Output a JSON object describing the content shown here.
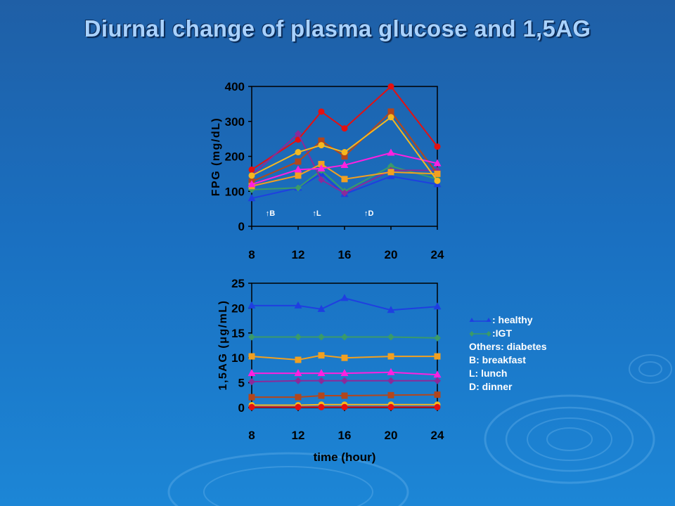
{
  "page": {
    "title": "Diurnal change of plasma glucose and 1,5AG"
  },
  "chart_data": [
    {
      "type": "line",
      "ylabel": "FPG (mg/dL)",
      "xlabel": "",
      "x": [
        8,
        12,
        14,
        16,
        20,
        24
      ],
      "xticks": [
        "8",
        "12",
        "16",
        "20",
        "24"
      ],
      "yticks": [
        "0",
        "100",
        "200",
        "300",
        "400"
      ],
      "xlim": [
        8,
        24
      ],
      "ylim": [
        0,
        400
      ],
      "annotations": [
        {
          "text": "↑B",
          "x": 9
        },
        {
          "text": "↑L",
          "x": 13
        },
        {
          "text": "↑D",
          "x": 17.5
        }
      ],
      "series": [
        {
          "color": "#1f3fe0",
          "marker": "triangle",
          "values": [
            80,
            110,
            150,
            92,
            143,
            120
          ]
        },
        {
          "color": "#3a9a6a",
          "marker": "diamond",
          "values": [
            105,
            110,
            160,
            100,
            172,
            135
          ]
        },
        {
          "color": "#e51010",
          "marker": "circle",
          "values": [
            162,
            248,
            328,
            280,
            400,
            228
          ]
        },
        {
          "color": "#8b2a9a",
          "marker": "diamond",
          "values": [
            145,
            265,
            133,
            95,
            160,
            160
          ]
        },
        {
          "color": "#b3461c",
          "marker": "square",
          "values": [
            128,
            185,
            245,
            200,
            328,
            150
          ]
        },
        {
          "color": "#f2a020",
          "marker": "square",
          "values": [
            115,
            145,
            178,
            135,
            155,
            150
          ]
        },
        {
          "color": "#ff20e0",
          "marker": "triangle",
          "values": [
            120,
            162,
            165,
            175,
            210,
            180
          ]
        },
        {
          "color": "#f5b820",
          "marker": "circle",
          "values": [
            145,
            212,
            232,
            212,
            312,
            130
          ]
        }
      ]
    },
    {
      "type": "line",
      "ylabel": "1,5AG (μg/mL)",
      "xlabel": "time (hour)",
      "x": [
        8,
        12,
        14,
        16,
        20,
        24
      ],
      "xticks": [
        "8",
        "12",
        "16",
        "20",
        "24"
      ],
      "yticks": [
        "0",
        "5",
        "10",
        "15",
        "20",
        "25"
      ],
      "xlim": [
        8,
        24
      ],
      "ylim": [
        0,
        25
      ],
      "series": [
        {
          "color": "#1f3fe0",
          "marker": "triangle",
          "values": [
            20.5,
            20.5,
            19.8,
            22.0,
            19.6,
            20.3
          ]
        },
        {
          "color": "#3a9a6a",
          "marker": "diamond",
          "values": [
            14.2,
            14.2,
            14.2,
            14.2,
            14.2,
            14.0
          ]
        },
        {
          "color": "#f2a020",
          "marker": "square",
          "values": [
            10.3,
            9.6,
            10.5,
            10.0,
            10.3,
            10.3
          ]
        },
        {
          "color": "#ff20e0",
          "marker": "triangle",
          "values": [
            6.9,
            6.9,
            6.9,
            6.9,
            7.1,
            6.6
          ]
        },
        {
          "color": "#8b2a9a",
          "marker": "diamond",
          "values": [
            5.2,
            5.4,
            5.4,
            5.4,
            5.4,
            5.4
          ]
        },
        {
          "color": "#b3461c",
          "marker": "square",
          "values": [
            2.1,
            2.1,
            2.4,
            2.4,
            2.5,
            2.6
          ]
        },
        {
          "color": "#f5b820",
          "marker": "circle",
          "values": [
            0.5,
            0.5,
            0.6,
            0.6,
            0.6,
            0.6
          ]
        },
        {
          "color": "#e51010",
          "marker": "circle",
          "values": [
            0.1,
            0.1,
            0.1,
            0.1,
            0.1,
            0.1
          ]
        }
      ]
    }
  ],
  "legend": {
    "items": [
      {
        "text": ": healthy",
        "color": "#1f3fe0",
        "marker": "triangle"
      },
      {
        "text": ":IGT",
        "color": "#3a9a6a",
        "marker": "diamond"
      },
      {
        "text": "Others: diabetes"
      },
      {
        "text": "B: breakfast"
      },
      {
        "text": "L: lunch"
      },
      {
        "text": "D: dinner"
      }
    ]
  }
}
